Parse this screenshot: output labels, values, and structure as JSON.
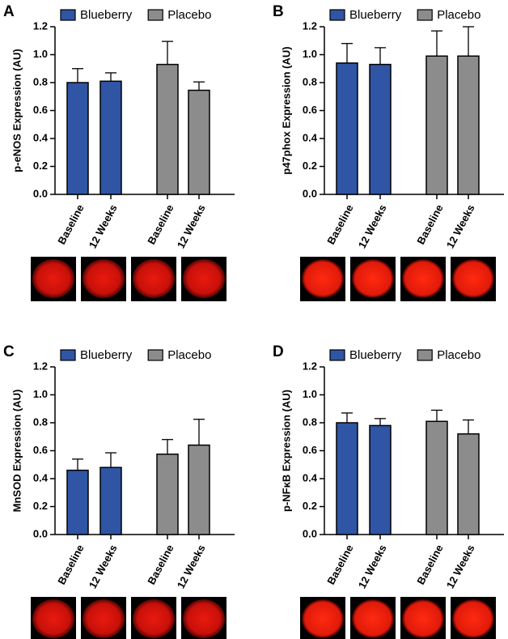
{
  "chart_data": [
    {
      "type": "bar",
      "panel_label": "A",
      "y_label": "p-eNOS Expression (AU)",
      "categories": [
        "Baseline",
        "12 Weeks",
        "Baseline",
        "12 Weeks"
      ],
      "series": [
        {
          "name": "Blueberry",
          "color": "#2f55a4",
          "values": [
            0.8,
            0.81,
            null,
            null
          ],
          "errors": [
            0.1,
            0.06,
            null,
            null
          ]
        },
        {
          "name": "Placebo",
          "color": "#8c8c8c",
          "values": [
            null,
            null,
            0.93,
            0.745
          ],
          "errors": [
            null,
            null,
            0.165,
            0.06
          ]
        }
      ],
      "ylim": [
        0,
        1.2
      ],
      "yticks": [
        {
          "value": 0,
          "label": "0.0"
        },
        0.2,
        0.4,
        0.6,
        0.8,
        {
          "value": 1,
          "label": "1.0"
        },
        1.2
      ]
    },
    {
      "type": "bar",
      "panel_label": "B",
      "y_label": "p47phox Expression (AU)",
      "categories": [
        "Baseline",
        "12 Weeks",
        "Baseline",
        "12 Weeks"
      ],
      "series": [
        {
          "name": "Blueberry",
          "color": "#2f55a4",
          "values": [
            0.94,
            0.93,
            null,
            null
          ],
          "errors": [
            0.14,
            0.12,
            null,
            null
          ]
        },
        {
          "name": "Placebo",
          "color": "#8c8c8c",
          "values": [
            null,
            null,
            0.99,
            0.99
          ],
          "errors": [
            null,
            null,
            0.18,
            0.21
          ]
        }
      ],
      "ylim": [
        0,
        1.2
      ],
      "yticks": [
        {
          "value": 0,
          "label": "0.0"
        },
        0.2,
        0.4,
        0.6,
        0.8,
        {
          "value": 1,
          "label": "1.0"
        },
        1.2
      ]
    },
    {
      "type": "bar",
      "panel_label": "C",
      "y_label": "MnSOD Expression (AU)",
      "categories": [
        "Baseline",
        "12 Weeks",
        "Baseline",
        "12 Weeks"
      ],
      "series": [
        {
          "name": "Blueberry",
          "color": "#2f55a4",
          "values": [
            0.46,
            0.48,
            null,
            null
          ],
          "errors": [
            0.08,
            0.105,
            null,
            null
          ]
        },
        {
          "name": "Placebo",
          "color": "#8c8c8c",
          "values": [
            null,
            null,
            0.575,
            0.64
          ],
          "errors": [
            null,
            null,
            0.105,
            0.185
          ]
        }
      ],
      "ylim": [
        0,
        1.2
      ],
      "yticks": [
        {
          "value": 0,
          "label": "0.0"
        },
        0.2,
        0.4,
        0.6,
        0.8,
        {
          "value": 1,
          "label": "1.0"
        },
        1.2
      ]
    },
    {
      "type": "bar",
      "panel_label": "D",
      "y_label": "p-NFκB Expression (AU)",
      "categories": [
        "Baseline",
        "12 Weeks",
        "Baseline",
        "12 Weeks"
      ],
      "series": [
        {
          "name": "Blueberry",
          "color": "#2f55a4",
          "values": [
            0.8,
            0.78,
            null,
            null
          ],
          "errors": [
            0.07,
            0.05,
            null,
            null
          ]
        },
        {
          "name": "Placebo",
          "color": "#8c8c8c",
          "values": [
            null,
            null,
            0.81,
            0.72
          ],
          "errors": [
            null,
            null,
            0.08,
            0.1
          ]
        }
      ],
      "ylim": [
        0,
        1.2
      ],
      "yticks": [
        {
          "value": 0,
          "label": "0.0"
        },
        0.2,
        0.4,
        0.6,
        0.8,
        {
          "value": 1,
          "label": "1.0"
        },
        1.2
      ]
    }
  ]
}
